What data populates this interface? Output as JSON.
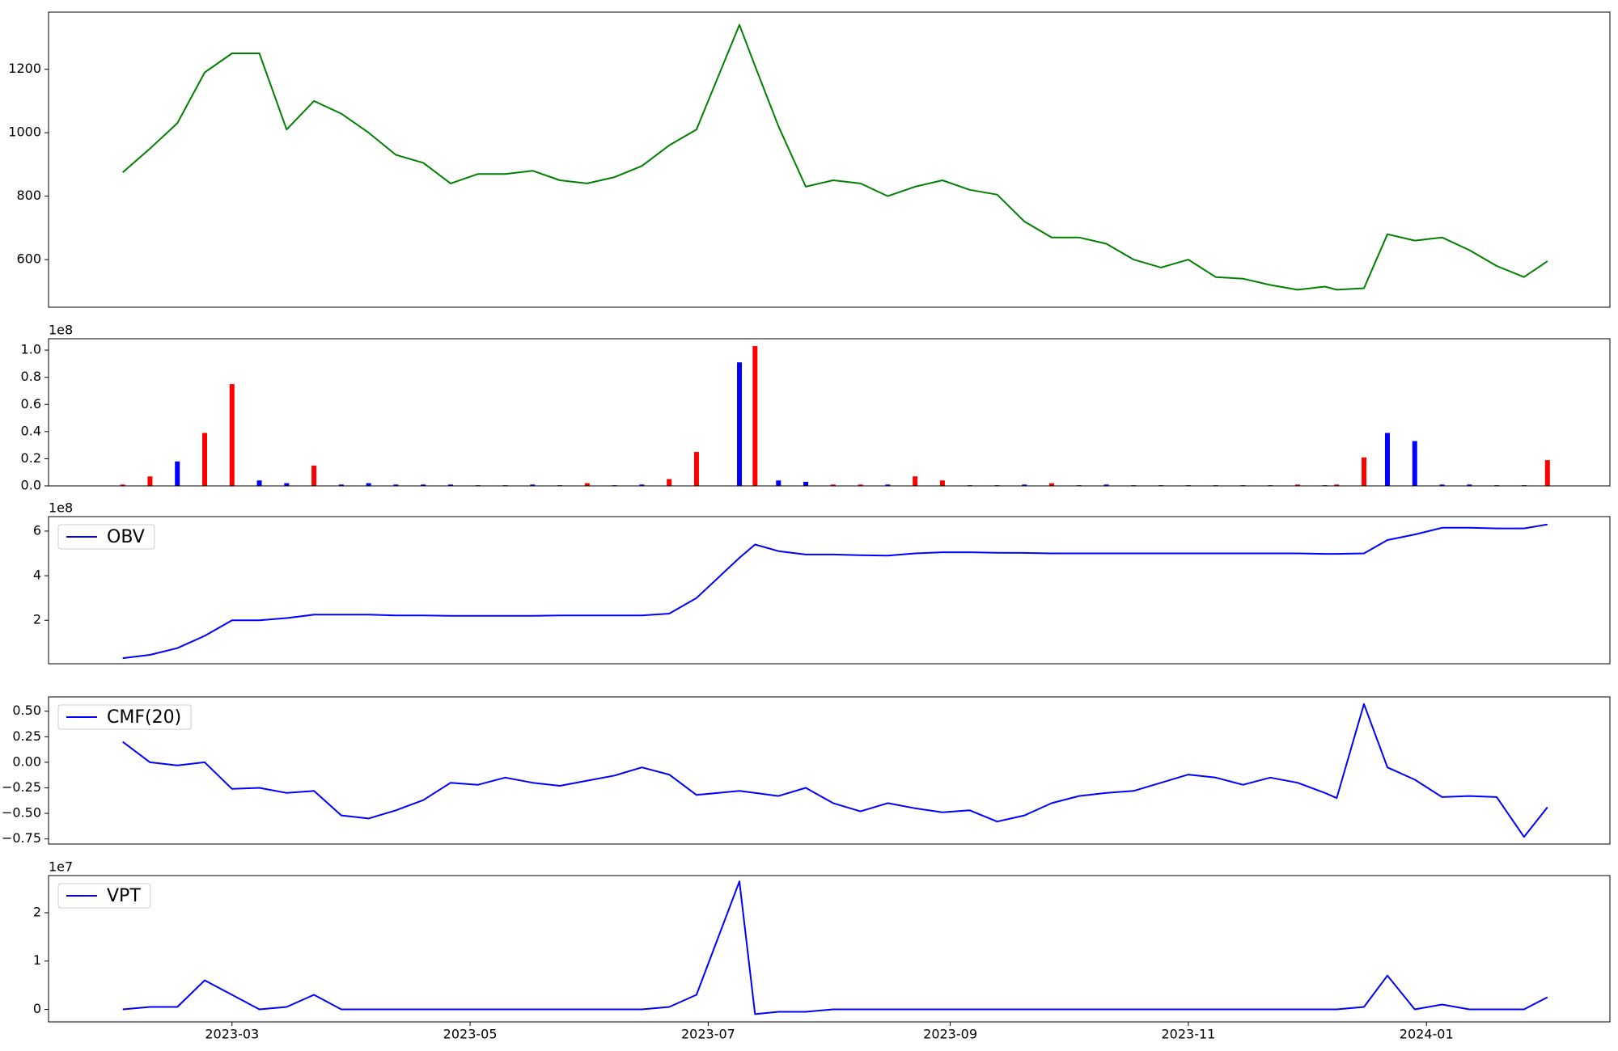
{
  "chart_data": {
    "x": [
      19389,
      19396,
      19403,
      19410,
      19417,
      19424,
      19431,
      19438,
      19445,
      19452,
      19459,
      19466,
      19473,
      19480,
      19487,
      19494,
      19501,
      19508,
      19515,
      19522,
      19529,
      19536,
      19547,
      19551,
      19557,
      19564,
      19571,
      19578,
      19585,
      19592,
      19599,
      19606,
      19613,
      19620,
      19627,
      19634,
      19641,
      19648,
      19655,
      19662,
      19669,
      19676,
      19683,
      19690,
      19697,
      19700,
      19707,
      19713,
      19720,
      19727,
      19734,
      19741,
      19748,
      19754
    ],
    "xlim": [
      19370,
      19770
    ],
    "xticks": [
      {
        "value": 19417,
        "label": "2023-03"
      },
      {
        "value": 19478,
        "label": "2023-05"
      },
      {
        "value": 19539,
        "label": "2023-07"
      },
      {
        "value": 19601,
        "label": "2023-09"
      },
      {
        "value": 19662,
        "label": "2023-11"
      },
      {
        "value": 19723,
        "label": "2024-01"
      }
    ],
    "panels": [
      {
        "type": "line",
        "color": "green",
        "values": [
          875,
          950,
          1030,
          1190,
          1250,
          1250,
          1010,
          1100,
          1060,
          1000,
          930,
          905,
          840,
          870,
          870,
          880,
          850,
          840,
          860,
          895,
          960,
          1010,
          1340,
          1210,
          1020,
          830,
          850,
          840,
          800,
          830,
          850,
          820,
          805,
          720,
          670,
          670,
          650,
          600,
          575,
          600,
          545,
          540,
          520,
          505,
          515,
          505,
          510,
          680,
          660,
          670,
          630,
          580,
          545,
          595
        ],
        "ylim": [
          450,
          1380
        ],
        "yticks": [
          600,
          800,
          1000,
          1200
        ]
      },
      {
        "type": "bar",
        "offset_label": "1e8",
        "values": [
          0.01,
          0.07,
          0.18,
          0.39,
          0.75,
          0.04,
          0.02,
          0.15,
          0.01,
          0.02,
          0.01,
          0.01,
          0.01,
          0.005,
          0.005,
          0.01,
          0.005,
          0.02,
          0.005,
          0.01,
          0.05,
          0.25,
          0.91,
          1.03,
          0.04,
          0.03,
          0.01,
          0.01,
          0.01,
          0.07,
          0.04,
          0.005,
          0.005,
          0.01,
          0.02,
          0.005,
          0.01,
          0.005,
          0.005,
          0.005,
          0.005,
          0.005,
          0.005,
          0.01,
          0.005,
          0.01,
          0.21,
          0.39,
          0.33,
          0.01,
          0.01,
          0.005,
          0.005,
          0.19
        ],
        "colors": [
          "red",
          "red",
          "blue",
          "red",
          "red",
          "blue",
          "blue",
          "red",
          "blue",
          "blue",
          "blue",
          "blue",
          "blue",
          "blue",
          "blue",
          "blue",
          "blue",
          "red",
          "blue",
          "blue",
          "red",
          "red",
          "blue",
          "red",
          "blue",
          "blue",
          "red",
          "red",
          "blue",
          "red",
          "red",
          "blue",
          "blue",
          "blue",
          "red",
          "blue",
          "blue",
          "blue",
          "blue",
          "blue",
          "blue",
          "blue",
          "blue",
          "red",
          "blue",
          "red",
          "red",
          "blue",
          "blue",
          "blue",
          "blue",
          "blue",
          "blue",
          "red"
        ],
        "ylim": [
          0,
          1.084
        ],
        "yticks": [
          {
            "value": 0,
            "label": "0.0"
          },
          {
            "value": 0.2,
            "label": "0.2"
          },
          {
            "value": 0.4,
            "label": "0.4"
          },
          {
            "value": 0.6,
            "label": "0.6"
          },
          {
            "value": 0.8,
            "label": "0.8"
          },
          {
            "value": 1,
            "label": "1.0"
          }
        ]
      },
      {
        "type": "line",
        "offset_label": "1e8",
        "series": [
          {
            "name": "OBV",
            "color": "blue",
            "values": [
              0.3,
              0.45,
              0.75,
              1.3,
              2.0,
              2.0,
              2.1,
              2.25,
              2.25,
              2.25,
              2.22,
              2.22,
              2.2,
              2.2,
              2.2,
              2.2,
              2.22,
              2.22,
              2.22,
              2.22,
              2.3,
              3.0,
              4.8,
              5.4,
              5.1,
              4.95,
              4.95,
              4.92,
              4.9,
              5.0,
              5.05,
              5.05,
              5.03,
              5.02,
              5.0,
              5.0,
              5.0,
              5.0,
              5.0,
              5.0,
              5.0,
              5.0,
              5.0,
              5.0,
              4.98,
              4.98,
              5.0,
              5.6,
              5.85,
              6.15,
              6.15,
              6.12,
              6.12,
              6.3
            ]
          }
        ],
        "ylim": [
          0.05,
          6.65
        ],
        "yticks": [
          2,
          4,
          6
        ],
        "legend": "upper left"
      },
      {
        "type": "line",
        "series": [
          {
            "name": "CMF(20)",
            "color": "blue",
            "values": [
              0.2,
              0.0,
              -0.03,
              0.0,
              -0.26,
              -0.25,
              -0.3,
              -0.28,
              -0.52,
              -0.55,
              -0.47,
              -0.37,
              -0.2,
              -0.22,
              -0.15,
              -0.2,
              -0.23,
              -0.18,
              -0.13,
              -0.05,
              -0.12,
              -0.32,
              -0.28,
              -0.3,
              -0.33,
              -0.25,
              -0.4,
              -0.48,
              -0.4,
              -0.45,
              -0.49,
              -0.47,
              -0.58,
              -0.52,
              -0.4,
              -0.33,
              -0.3,
              -0.28,
              -0.2,
              -0.12,
              -0.15,
              -0.22,
              -0.15,
              -0.2,
              -0.3,
              -0.35,
              0.57,
              -0.05,
              -0.17,
              -0.34,
              -0.33,
              -0.34,
              -0.73,
              -0.44
            ]
          }
        ],
        "ylim": [
          -0.8,
          0.64
        ],
        "yticks": [
          {
            "value": -0.75,
            "label": "−0.75"
          },
          {
            "value": -0.5,
            "label": "−0.50"
          },
          {
            "value": -0.25,
            "label": "−0.25"
          },
          {
            "value": 0,
            "label": "0.00"
          },
          {
            "value": 0.25,
            "label": "0.25"
          },
          {
            "value": 0.5,
            "label": "0.50"
          }
        ],
        "legend": "upper left"
      },
      {
        "type": "line",
        "offset_label": "1e7",
        "series": [
          {
            "name": "VPT",
            "color": "blue",
            "values": [
              0,
              0.05,
              0.05,
              0.6,
              0.3,
              0,
              0.05,
              0.3,
              0,
              0,
              0,
              0,
              0,
              0,
              0,
              0,
              0,
              0,
              0,
              0,
              0.05,
              0.3,
              2.65,
              -0.1,
              -0.05,
              -0.05,
              0,
              0,
              0,
              0,
              0,
              0,
              0,
              0,
              0,
              0,
              0,
              0,
              0,
              0,
              0,
              0,
              0,
              0,
              0,
              0,
              0.05,
              0.7,
              0,
              0.1,
              0,
              0,
              0,
              0.25
            ]
          }
        ],
        "ylim": [
          -0.26,
          2.77
        ],
        "yticks": [
          0,
          1,
          2
        ],
        "legend": "upper left"
      }
    ]
  }
}
